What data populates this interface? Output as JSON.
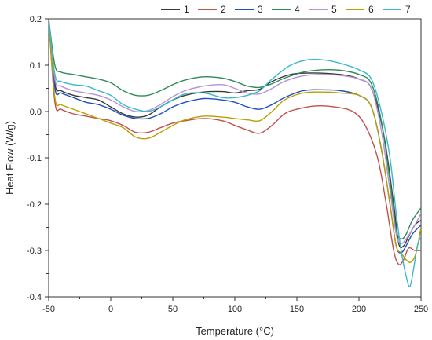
{
  "chart_data": {
    "type": "line",
    "title": "",
    "xlabel": "Temperature (°C)",
    "ylabel": "Heat Flow (W/g)",
    "xlim": [
      -50,
      250
    ],
    "ylim": [
      -0.4,
      0.2
    ],
    "xticks": [
      -50,
      0,
      50,
      100,
      150,
      200,
      250
    ],
    "yticks": [
      -0.4,
      -0.3,
      -0.2,
      -0.1,
      0.0,
      0.1,
      0.2
    ],
    "xtick_labels": [
      "-50",
      "0",
      "50",
      "100",
      "150",
      "200",
      "250"
    ],
    "ytick_labels": [
      "-0.4",
      "-0.3",
      "-0.2",
      "-0.1",
      "0.0",
      "0.1",
      "0.2"
    ],
    "grid": false,
    "legend_position": "top-right",
    "series": [
      {
        "name": "1",
        "color": "#3a3a3a",
        "points": [
          [
            -50,
            0.2
          ],
          [
            -45,
            0.06
          ],
          [
            -40,
            0.045
          ],
          [
            -30,
            0.035
          ],
          [
            -20,
            0.03
          ],
          [
            -10,
            0.025
          ],
          [
            0,
            0.01
          ],
          [
            10,
            -0.005
          ],
          [
            20,
            -0.012
          ],
          [
            30,
            -0.008
          ],
          [
            40,
            0.01
          ],
          [
            50,
            0.025
          ],
          [
            60,
            0.035
          ],
          [
            75,
            0.042
          ],
          [
            90,
            0.043
          ],
          [
            100,
            0.04
          ],
          [
            110,
            0.045
          ],
          [
            120,
            0.048
          ],
          [
            130,
            0.065
          ],
          [
            145,
            0.08
          ],
          [
            160,
            0.083
          ],
          [
            175,
            0.082
          ],
          [
            190,
            0.078
          ],
          [
            200,
            0.07
          ],
          [
            210,
            0.05
          ],
          [
            220,
            -0.05
          ],
          [
            228,
            -0.2
          ],
          [
            232,
            -0.285
          ],
          [
            236,
            -0.29
          ],
          [
            240,
            -0.27
          ],
          [
            245,
            -0.245
          ],
          [
            250,
            -0.235
          ]
        ]
      },
      {
        "name": "2",
        "color": "#c0504d",
        "points": [
          [
            -50,
            0.2
          ],
          [
            -45,
            0.02
          ],
          [
            -40,
            0.005
          ],
          [
            -30,
            -0.005
          ],
          [
            -20,
            -0.01
          ],
          [
            -10,
            -0.015
          ],
          [
            0,
            -0.02
          ],
          [
            10,
            -0.03
          ],
          [
            20,
            -0.045
          ],
          [
            30,
            -0.045
          ],
          [
            40,
            -0.035
          ],
          [
            50,
            -0.025
          ],
          [
            60,
            -0.02
          ],
          [
            75,
            -0.015
          ],
          [
            90,
            -0.02
          ],
          [
            100,
            -0.03
          ],
          [
            110,
            -0.04
          ],
          [
            120,
            -0.047
          ],
          [
            130,
            -0.03
          ],
          [
            140,
            -0.005
          ],
          [
            150,
            0.005
          ],
          [
            165,
            0.012
          ],
          [
            180,
            0.01
          ],
          [
            195,
            0.0
          ],
          [
            205,
            -0.03
          ],
          [
            215,
            -0.1
          ],
          [
            222,
            -0.2
          ],
          [
            228,
            -0.3
          ],
          [
            232,
            -0.33
          ],
          [
            236,
            -0.32
          ],
          [
            240,
            -0.295
          ],
          [
            245,
            -0.3
          ],
          [
            250,
            -0.3
          ]
        ]
      },
      {
        "name": "3",
        "color": "#1f4fbf",
        "points": [
          [
            -50,
            0.2
          ],
          [
            -45,
            0.05
          ],
          [
            -40,
            0.04
          ],
          [
            -30,
            0.03
          ],
          [
            -20,
            0.02
          ],
          [
            -10,
            0.015
          ],
          [
            0,
            0.005
          ],
          [
            10,
            -0.008
          ],
          [
            20,
            -0.015
          ],
          [
            30,
            -0.015
          ],
          [
            40,
            -0.005
          ],
          [
            50,
            0.01
          ],
          [
            60,
            0.02
          ],
          [
            75,
            0.028
          ],
          [
            90,
            0.025
          ],
          [
            100,
            0.02
          ],
          [
            110,
            0.01
          ],
          [
            120,
            0.005
          ],
          [
            130,
            0.015
          ],
          [
            140,
            0.03
          ],
          [
            155,
            0.045
          ],
          [
            170,
            0.047
          ],
          [
            185,
            0.045
          ],
          [
            200,
            0.035
          ],
          [
            210,
            0.01
          ],
          [
            218,
            -0.08
          ],
          [
            225,
            -0.2
          ],
          [
            230,
            -0.29
          ],
          [
            234,
            -0.305
          ],
          [
            238,
            -0.29
          ],
          [
            243,
            -0.265
          ],
          [
            250,
            -0.245
          ]
        ]
      },
      {
        "name": "4",
        "color": "#2e8b57",
        "points": [
          [
            -50,
            0.2
          ],
          [
            -45,
            0.1
          ],
          [
            -40,
            0.085
          ],
          [
            -30,
            0.08
          ],
          [
            -20,
            0.075
          ],
          [
            -10,
            0.07
          ],
          [
            0,
            0.062
          ],
          [
            10,
            0.045
          ],
          [
            20,
            0.035
          ],
          [
            30,
            0.035
          ],
          [
            40,
            0.045
          ],
          [
            50,
            0.058
          ],
          [
            60,
            0.068
          ],
          [
            75,
            0.075
          ],
          [
            90,
            0.072
          ],
          [
            100,
            0.065
          ],
          [
            110,
            0.055
          ],
          [
            120,
            0.052
          ],
          [
            130,
            0.06
          ],
          [
            140,
            0.072
          ],
          [
            155,
            0.085
          ],
          [
            170,
            0.09
          ],
          [
            185,
            0.089
          ],
          [
            200,
            0.08
          ],
          [
            210,
            0.06
          ],
          [
            218,
            -0.02
          ],
          [
            225,
            -0.15
          ],
          [
            230,
            -0.255
          ],
          [
            234,
            -0.275
          ],
          [
            238,
            -0.265
          ],
          [
            243,
            -0.235
          ],
          [
            250,
            -0.208
          ]
        ]
      },
      {
        "name": "5",
        "color": "#b88fd8",
        "points": [
          [
            -50,
            0.2
          ],
          [
            -45,
            0.07
          ],
          [
            -40,
            0.055
          ],
          [
            -30,
            0.045
          ],
          [
            -20,
            0.04
          ],
          [
            -10,
            0.035
          ],
          [
            0,
            0.025
          ],
          [
            10,
            0.01
          ],
          [
            20,
            0.0
          ],
          [
            30,
            0.002
          ],
          [
            40,
            0.015
          ],
          [
            50,
            0.032
          ],
          [
            60,
            0.045
          ],
          [
            75,
            0.055
          ],
          [
            90,
            0.058
          ],
          [
            100,
            0.05
          ],
          [
            110,
            0.04
          ],
          [
            120,
            0.038
          ],
          [
            130,
            0.05
          ],
          [
            140,
            0.065
          ],
          [
            155,
            0.077
          ],
          [
            170,
            0.08
          ],
          [
            185,
            0.078
          ],
          [
            200,
            0.07
          ],
          [
            210,
            0.05
          ],
          [
            218,
            -0.04
          ],
          [
            225,
            -0.17
          ],
          [
            230,
            -0.265
          ],
          [
            234,
            -0.285
          ],
          [
            238,
            -0.275
          ],
          [
            243,
            -0.255
          ],
          [
            250,
            -0.22
          ]
        ]
      },
      {
        "name": "6",
        "color": "#b8a000",
        "points": [
          [
            -50,
            0.2
          ],
          [
            -45,
            0.03
          ],
          [
            -40,
            0.015
          ],
          [
            -30,
            0.005
          ],
          [
            -20,
            -0.005
          ],
          [
            -10,
            -0.015
          ],
          [
            0,
            -0.025
          ],
          [
            10,
            -0.035
          ],
          [
            20,
            -0.055
          ],
          [
            30,
            -0.058
          ],
          [
            40,
            -0.045
          ],
          [
            50,
            -0.03
          ],
          [
            60,
            -0.018
          ],
          [
            75,
            -0.01
          ],
          [
            90,
            -0.012
          ],
          [
            100,
            -0.015
          ],
          [
            110,
            -0.018
          ],
          [
            120,
            -0.02
          ],
          [
            130,
            0.0
          ],
          [
            140,
            0.025
          ],
          [
            155,
            0.04
          ],
          [
            170,
            0.042
          ],
          [
            185,
            0.04
          ],
          [
            200,
            0.035
          ],
          [
            210,
            0.01
          ],
          [
            218,
            -0.08
          ],
          [
            225,
            -0.2
          ],
          [
            230,
            -0.29
          ],
          [
            234,
            -0.305
          ],
          [
            238,
            -0.32
          ],
          [
            242,
            -0.325
          ],
          [
            246,
            -0.305
          ],
          [
            250,
            -0.25
          ]
        ]
      },
      {
        "name": "7",
        "color": "#3ab8c8",
        "points": [
          [
            -50,
            0.2
          ],
          [
            -45,
            0.08
          ],
          [
            -40,
            0.065
          ],
          [
            -30,
            0.058
          ],
          [
            -20,
            0.055
          ],
          [
            -10,
            0.045
          ],
          [
            0,
            0.035
          ],
          [
            10,
            0.015
          ],
          [
            20,
            0.005
          ],
          [
            30,
            0.0
          ],
          [
            40,
            0.01
          ],
          [
            50,
            0.025
          ],
          [
            60,
            0.038
          ],
          [
            75,
            0.04
          ],
          [
            90,
            0.03
          ],
          [
            100,
            0.03
          ],
          [
            110,
            0.035
          ],
          [
            120,
            0.045
          ],
          [
            130,
            0.07
          ],
          [
            145,
            0.1
          ],
          [
            160,
            0.112
          ],
          [
            175,
            0.11
          ],
          [
            190,
            0.1
          ],
          [
            200,
            0.09
          ],
          [
            210,
            0.07
          ],
          [
            218,
            0.0
          ],
          [
            225,
            -0.1
          ],
          [
            230,
            -0.22
          ],
          [
            234,
            -0.3
          ],
          [
            238,
            -0.355
          ],
          [
            241,
            -0.378
          ],
          [
            244,
            -0.34
          ],
          [
            247,
            -0.29
          ],
          [
            250,
            -0.27
          ]
        ]
      }
    ]
  }
}
